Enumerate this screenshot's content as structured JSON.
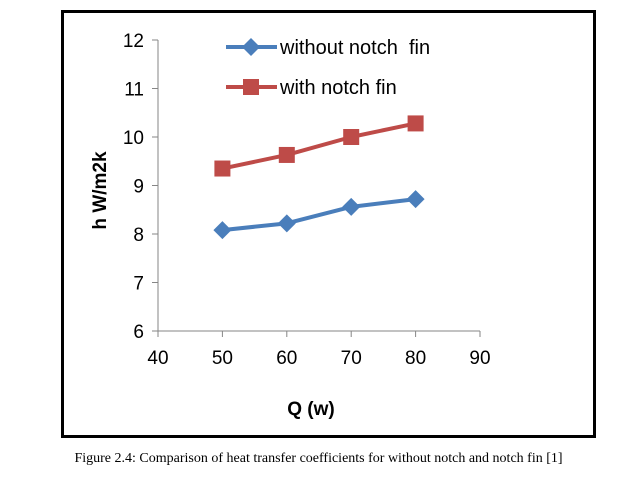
{
  "caption": "Figure 2.4: Comparison of heat transfer coefficients for without notch and notch fin [1]",
  "chart_data": {
    "type": "line",
    "title": "",
    "xlabel": "Q (w)",
    "ylabel": "h W/m2k",
    "xlim": [
      40,
      90
    ],
    "ylim": [
      6,
      12
    ],
    "xticks": [
      40,
      50,
      60,
      70,
      80,
      90
    ],
    "yticks": [
      6,
      7,
      8,
      9,
      10,
      11,
      12
    ],
    "grid": false,
    "legend_position": "top",
    "series": [
      {
        "name": "without notch  fin",
        "color": "#4a7ebb",
        "marker": "diamond",
        "x": [
          50,
          60,
          70,
          80
        ],
        "y": [
          8.08,
          8.22,
          8.56,
          8.72
        ]
      },
      {
        "name": "with notch fin",
        "color": "#be4b48",
        "marker": "square",
        "x": [
          50,
          60,
          70,
          80
        ],
        "y": [
          9.35,
          9.63,
          10.0,
          10.28
        ]
      }
    ]
  }
}
